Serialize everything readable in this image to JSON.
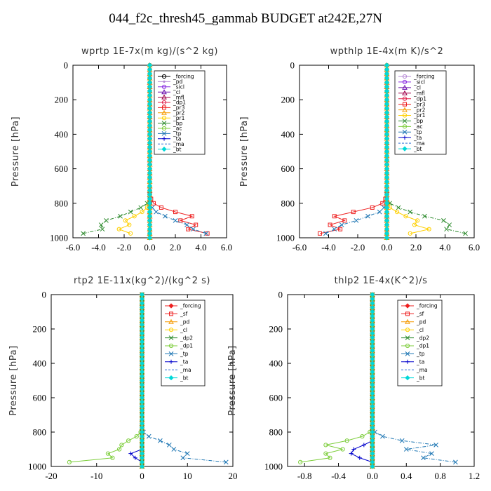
{
  "suptitle": "044_f2c_thresh45_gammab  BUDGET at242E,27N",
  "chart_data": [
    {
      "type": "line",
      "title": "wprtp  1E-7x(m kg)/(s^2 kg)",
      "ylabel": "Pressure [hPa]",
      "xlim": [
        -6,
        6
      ],
      "ylim": [
        1000,
        0
      ],
      "xticks": [
        "-6.0",
        "-4.0",
        "-2.0",
        "0.0",
        "2.0",
        "4.0",
        "6.0"
      ],
      "yticks": [
        "0",
        "200",
        "400",
        "600",
        "800",
        "1000"
      ],
      "y": [
        975,
        950,
        925,
        900,
        875,
        850,
        825,
        800,
        775,
        750
      ],
      "series": [
        {
          "name": "_forcing",
          "color": "#000000",
          "marker": "circle",
          "values": [
            0,
            0,
            0,
            0,
            0,
            0,
            0,
            0,
            0,
            0
          ]
        },
        {
          "name": "_pd",
          "color": "#b68ad6",
          "marker": "dot",
          "values": [
            0,
            0,
            0,
            0,
            0,
            0,
            0,
            0,
            0,
            0
          ]
        },
        {
          "name": "_sicl",
          "color": "#8a2be2",
          "marker": "circle",
          "values": [
            0,
            0,
            0,
            0,
            0,
            0,
            0,
            0,
            0,
            0
          ]
        },
        {
          "name": "_cl",
          "color": "#6a0dad",
          "marker": "tri",
          "values": [
            0,
            0,
            0,
            0,
            0,
            0,
            0,
            0,
            0,
            0
          ]
        },
        {
          "name": "_mfl",
          "color": "#a0004a",
          "marker": "tri",
          "values": [
            0,
            0,
            0,
            0,
            0,
            0,
            0,
            0,
            0,
            0
          ]
        },
        {
          "name": "_dp1",
          "color": "#e0204a",
          "marker": "circle",
          "values": [
            0,
            0,
            0,
            0,
            0,
            0,
            0,
            0,
            0,
            0
          ]
        },
        {
          "name": "_pr3",
          "color": "#ee2020",
          "marker": "square",
          "values": [
            4.5,
            3.0,
            3.6,
            2.4,
            3.3,
            2.0,
            0.9,
            0.3,
            0.1,
            0.0
          ]
        },
        {
          "name": "_pr2",
          "color": "#f59a00",
          "marker": "tri",
          "values": [
            0,
            0,
            0,
            0,
            0,
            0,
            0,
            0,
            0,
            0
          ]
        },
        {
          "name": "_pr1",
          "color": "#ffd000",
          "marker": "circle",
          "values": [
            -1.5,
            -2.4,
            -1.6,
            -1.9,
            -1.2,
            -0.6,
            -0.2,
            -0.1,
            0.0,
            0.0
          ]
        },
        {
          "name": "_bp",
          "color": "#2e8b2e",
          "marker": "x",
          "values": [
            -5.2,
            -3.7,
            -3.8,
            -3.4,
            -2.3,
            -1.5,
            -0.7,
            -0.2,
            0.0,
            0.0
          ]
        },
        {
          "name": "_ac",
          "color": "#7ccd3a",
          "marker": "circle",
          "values": [
            0,
            0,
            0,
            0,
            0,
            0,
            0,
            0,
            0,
            0
          ]
        },
        {
          "name": "_tp",
          "color": "#1f77b4",
          "marker": "x",
          "values": [
            4.4,
            3.4,
            2.9,
            2.0,
            1.2,
            0.5,
            0.2,
            0.0,
            0.0,
            0.0
          ]
        },
        {
          "name": "_ta",
          "color": "#0000cc",
          "marker": "plus",
          "values": [
            0,
            0,
            0,
            0,
            0,
            0,
            0,
            0,
            0,
            0
          ]
        },
        {
          "name": "_ma",
          "color": "#2a6fd6",
          "marker": "none",
          "values": [
            0,
            0,
            0,
            0,
            0,
            0,
            0,
            0,
            0,
            0
          ]
        },
        {
          "name": "_bt",
          "color": "#00d8d8",
          "marker": "diamond",
          "values": [
            0,
            0,
            0,
            0,
            0,
            0,
            0,
            0,
            0,
            0
          ]
        }
      ]
    },
    {
      "type": "line",
      "title": "wpthlp  1E-4x(m K)/s^2",
      "ylabel": "Pressure [hPa]",
      "xlim": [
        -6,
        6
      ],
      "ylim": [
        1000,
        0
      ],
      "xticks": [
        "-6.0",
        "-4.0",
        "-2.0",
        "0.0",
        "2.0",
        "4.0",
        "6.0"
      ],
      "yticks": [
        "0",
        "200",
        "400",
        "600",
        "800",
        "1000"
      ],
      "y": [
        975,
        950,
        925,
        900,
        875,
        850,
        825,
        800,
        775,
        750
      ],
      "series": [
        {
          "name": "_forcing",
          "color": "#b68ad6",
          "marker": "circle",
          "values": [
            0,
            0,
            0,
            0,
            0,
            0,
            0,
            0,
            0,
            0
          ]
        },
        {
          "name": "_sicl",
          "color": "#8a2be2",
          "marker": "circle",
          "values": [
            0,
            0,
            0,
            0,
            0,
            0,
            0,
            0,
            0,
            0
          ]
        },
        {
          "name": "_cl",
          "color": "#6a0dad",
          "marker": "tri",
          "values": [
            0,
            0,
            0,
            0,
            0,
            0,
            0,
            0,
            0,
            0
          ]
        },
        {
          "name": "_mfl",
          "color": "#a0004a",
          "marker": "tri",
          "values": [
            0,
            0,
            0,
            0,
            0,
            0,
            0,
            0,
            0,
            0
          ]
        },
        {
          "name": "_dp1",
          "color": "#e0204a",
          "marker": "circle",
          "values": [
            0,
            0,
            0,
            0,
            0,
            0,
            0,
            0,
            0,
            0
          ]
        },
        {
          "name": "_pr3",
          "color": "#ee2020",
          "marker": "square",
          "values": [
            -4.6,
            -3.2,
            -3.9,
            -2.9,
            -3.6,
            -2.3,
            -1.0,
            -0.3,
            -0.1,
            0.0
          ]
        },
        {
          "name": "_pr2",
          "color": "#f59a00",
          "marker": "tri",
          "values": [
            0,
            0,
            0,
            0,
            0,
            0,
            0,
            0,
            0,
            0
          ]
        },
        {
          "name": "_pr1",
          "color": "#ffd000",
          "marker": "circle",
          "values": [
            1.6,
            2.9,
            1.9,
            2.1,
            1.3,
            0.7,
            0.2,
            0.1,
            0.0,
            0.0
          ]
        },
        {
          "name": "_bp",
          "color": "#2e8b2e",
          "marker": "x",
          "values": [
            5.4,
            4.1,
            4.3,
            3.9,
            2.6,
            1.6,
            0.8,
            0.2,
            0.0,
            0.0
          ]
        },
        {
          "name": "_ac",
          "color": "#7ccd3a",
          "marker": "circle",
          "values": [
            0,
            0,
            0,
            0,
            0,
            0,
            0,
            0,
            0,
            0
          ]
        },
        {
          "name": "_tp",
          "color": "#1f77b4",
          "marker": "x",
          "values": [
            -4.2,
            -3.6,
            -3.1,
            -2.1,
            -1.3,
            -0.5,
            -0.2,
            0.0,
            0.0,
            0.0
          ]
        },
        {
          "name": "_ta",
          "color": "#0000cc",
          "marker": "plus",
          "values": [
            0,
            0,
            0,
            0,
            0,
            0,
            0,
            0,
            0,
            0
          ]
        },
        {
          "name": "_ma",
          "color": "#2a6fd6",
          "marker": "none",
          "values": [
            0,
            0,
            0,
            0,
            0,
            0,
            0,
            0,
            0,
            0
          ]
        },
        {
          "name": "_bt",
          "color": "#00d8d8",
          "marker": "diamond",
          "values": [
            0,
            0,
            0,
            0,
            0,
            0,
            0,
            0,
            0,
            0
          ]
        }
      ]
    },
    {
      "type": "line",
      "title": "rtp2  1E-11x(kg^2)/(kg^2 s)",
      "ylabel": "Pressure [hPa]",
      "xlim": [
        -20,
        20
      ],
      "ylim": [
        1000,
        0
      ],
      "xticks": [
        "-20",
        "-10",
        "0",
        "10",
        "20"
      ],
      "yticks": [
        "0",
        "200",
        "400",
        "600",
        "800",
        "1000"
      ],
      "y": [
        975,
        950,
        925,
        900,
        875,
        850,
        825,
        800,
        775
      ],
      "series": [
        {
          "name": "_forcing",
          "color": "#ee2020",
          "marker": "diamond",
          "values": [
            0,
            0,
            0,
            0,
            0,
            0,
            0,
            0,
            0
          ]
        },
        {
          "name": "_sf",
          "color": "#ee2020",
          "marker": "square",
          "values": [
            0,
            0,
            0,
            0,
            0,
            0,
            0,
            0,
            0
          ]
        },
        {
          "name": "_pd",
          "color": "#f59a00",
          "marker": "tri",
          "values": [
            0,
            0,
            0,
            0,
            0,
            0,
            0,
            0,
            0
          ]
        },
        {
          "name": "_cl",
          "color": "#ffd000",
          "marker": "circle",
          "values": [
            0,
            0,
            0,
            0,
            0,
            0,
            0,
            0,
            0
          ]
        },
        {
          "name": "_dp2",
          "color": "#2e8b2e",
          "marker": "x",
          "values": [
            0,
            0,
            0,
            0,
            0,
            0,
            0,
            0,
            0
          ]
        },
        {
          "name": "_dp1",
          "color": "#7ccd3a",
          "marker": "circle",
          "values": [
            -16.0,
            -6.5,
            -7.5,
            -5.0,
            -4.5,
            -3.0,
            -1.2,
            -0.3,
            0.0
          ]
        },
        {
          "name": "_tp",
          "color": "#1f77b4",
          "marker": "x",
          "values": [
            18.5,
            9.0,
            10.0,
            7.0,
            6.0,
            4.0,
            1.5,
            0.3,
            0.0
          ]
        },
        {
          "name": "_ta",
          "color": "#0000cc",
          "marker": "plus",
          "values": [
            0,
            -1.5,
            -2.5,
            0,
            0,
            0,
            0,
            0,
            0
          ]
        },
        {
          "name": "_ma",
          "color": "#2a6fd6",
          "marker": "none",
          "values": [
            0,
            0,
            0,
            0,
            0,
            0,
            0,
            0,
            0
          ]
        },
        {
          "name": "_bt",
          "color": "#00d8d8",
          "marker": "diamond",
          "values": [
            0,
            0,
            0,
            0,
            0,
            0,
            0,
            0,
            0
          ]
        }
      ]
    },
    {
      "type": "line",
      "title": "thlp2  1E-4x(K^2)/s",
      "ylabel": "Pressure [hPa]",
      "xlim": [
        -1.0,
        1.2
      ],
      "ylim": [
        1000,
        0
      ],
      "xticks": [
        "-0.8",
        "-0.4",
        "0.0",
        "0.4",
        "0.8",
        "1.2"
      ],
      "yticks": [
        "0",
        "200",
        "400",
        "600",
        "800",
        "1000"
      ],
      "y": [
        975,
        950,
        925,
        900,
        875,
        850,
        825,
        800,
        775
      ],
      "series": [
        {
          "name": "_forcing",
          "color": "#ee2020",
          "marker": "diamond",
          "values": [
            0,
            0,
            0,
            0,
            0,
            0,
            0,
            0,
            0
          ]
        },
        {
          "name": "_sf",
          "color": "#ee2020",
          "marker": "square",
          "values": [
            0,
            0,
            0,
            0,
            0,
            0,
            0,
            0,
            0
          ]
        },
        {
          "name": "_pd",
          "color": "#f59a00",
          "marker": "tri",
          "values": [
            0,
            0,
            0,
            0,
            0,
            0,
            0,
            0,
            0
          ]
        },
        {
          "name": "_cl",
          "color": "#ffd000",
          "marker": "circle",
          "values": [
            0,
            0,
            0,
            0,
            0,
            0,
            0,
            0,
            0
          ]
        },
        {
          "name": "_dp2",
          "color": "#2e8b2e",
          "marker": "x",
          "values": [
            0,
            0,
            0,
            0,
            0,
            0,
            0,
            0,
            0
          ]
        },
        {
          "name": "_dp1",
          "color": "#7ccd3a",
          "marker": "circle",
          "values": [
            -0.85,
            -0.5,
            -0.55,
            -0.35,
            -0.55,
            -0.3,
            -0.12,
            -0.03,
            0.0
          ]
        },
        {
          "name": "_tp",
          "color": "#1f77b4",
          "marker": "x",
          "values": [
            0.98,
            0.6,
            0.7,
            0.4,
            0.75,
            0.35,
            0.12,
            0.03,
            0.0
          ]
        },
        {
          "name": "_ta",
          "color": "#0000cc",
          "marker": "plus",
          "values": [
            0,
            -0.15,
            -0.25,
            -0.22,
            -0.1,
            0,
            0,
            0,
            0
          ]
        },
        {
          "name": "_ma",
          "color": "#2a6fd6",
          "marker": "none",
          "values": [
            0,
            0,
            0,
            0,
            0,
            0,
            0,
            0,
            0
          ]
        },
        {
          "name": "_bt",
          "color": "#00d8d8",
          "marker": "diamond",
          "values": [
            0,
            0,
            0,
            0,
            0,
            0,
            0,
            0,
            0
          ]
        }
      ]
    }
  ]
}
